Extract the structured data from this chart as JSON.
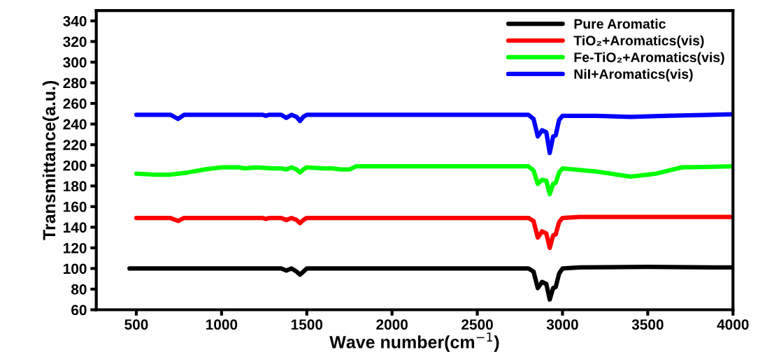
{
  "chart_data": {
    "type": "line",
    "xlabel": "Wave number(cm$^{−1}$)",
    "ylabel": "Transmittance(a.u.)",
    "xlim": [
      265,
      4000
    ],
    "xticks": [
      500,
      1000,
      1500,
      2000,
      2500,
      3000,
      3500,
      4000
    ],
    "ylim": [
      60,
      350
    ],
    "yticks": [
      60,
      80,
      100,
      120,
      140,
      160,
      180,
      200,
      220,
      240,
      260,
      280,
      300,
      320,
      340
    ],
    "grid": false,
    "legend": "top right",
    "series": [
      {
        "name": "Pure Aromatic",
        "color": "#000000",
        "x": [
          460,
          700,
          1000,
          1300,
          1350,
          1380,
          1410,
          1440,
          1460,
          1480,
          1500,
          1800,
          2500,
          2800,
          2830,
          2855,
          2880,
          2905,
          2925,
          2945,
          2960,
          2980,
          3000,
          3100,
          3500,
          4000
        ],
        "values": [
          100,
          100,
          100,
          100,
          100,
          98,
          100,
          97,
          94,
          97,
          100,
          100,
          100,
          100,
          97,
          81,
          87,
          85,
          70,
          81,
          82,
          95,
          100,
          101,
          101.5,
          101
        ]
      },
      {
        "name": "TiO₂+Aromatics(vis)",
        "color": "#ff0000",
        "x": [
          500,
          700,
          745,
          780,
          1000,
          1240,
          1260,
          1280,
          1350,
          1380,
          1410,
          1440,
          1460,
          1480,
          1500,
          1800,
          2500,
          2800,
          2830,
          2855,
          2880,
          2905,
          2925,
          2945,
          2960,
          2980,
          3000,
          3100,
          3500,
          4000
        ],
        "values": [
          149,
          149,
          146,
          149,
          149,
          149,
          148,
          149,
          149,
          147,
          149,
          147,
          144,
          147,
          149,
          149,
          149,
          149,
          146,
          130,
          136,
          134,
          120,
          132,
          133,
          145,
          149,
          150,
          150,
          150
        ]
      },
      {
        "name": "Fe-TiO₂+Aromatics(vis)",
        "color": "#00ff00",
        "x": [
          500,
          600,
          700,
          800,
          900,
          1000,
          1100,
          1140,
          1200,
          1300,
          1350,
          1380,
          1410,
          1440,
          1460,
          1480,
          1500,
          1600,
          1650,
          1700,
          1750,
          1790,
          1900,
          2500,
          2800,
          2830,
          2855,
          2880,
          2905,
          2925,
          2945,
          2960,
          2980,
          3000,
          3200,
          3400,
          3550,
          3700,
          4000
        ],
        "values": [
          192,
          191,
          191,
          193,
          196,
          198,
          198,
          197,
          198,
          197,
          197,
          196,
          198,
          196,
          193,
          196,
          198,
          197,
          197,
          196,
          196,
          199,
          199,
          199,
          199,
          195,
          182,
          186,
          185,
          172,
          182,
          183,
          193,
          197,
          194,
          189,
          192,
          198,
          199
        ]
      },
      {
        "name": "NiI+Aromatics(vis)",
        "color": "#0000ff",
        "x": [
          500,
          700,
          745,
          780,
          1000,
          1240,
          1260,
          1280,
          1350,
          1380,
          1410,
          1440,
          1460,
          1480,
          1500,
          1800,
          2500,
          2800,
          2830,
          2855,
          2880,
          2905,
          2925,
          2945,
          2960,
          2980,
          3000,
          3200,
          3400,
          3600,
          4000
        ],
        "values": [
          249,
          249,
          245,
          249,
          249,
          249,
          248,
          249,
          249,
          246,
          249,
          247,
          243,
          247,
          249,
          249,
          249,
          249,
          245,
          228,
          234,
          232,
          212,
          228,
          229,
          244,
          248,
          248,
          247,
          248,
          249.5
        ]
      }
    ]
  }
}
